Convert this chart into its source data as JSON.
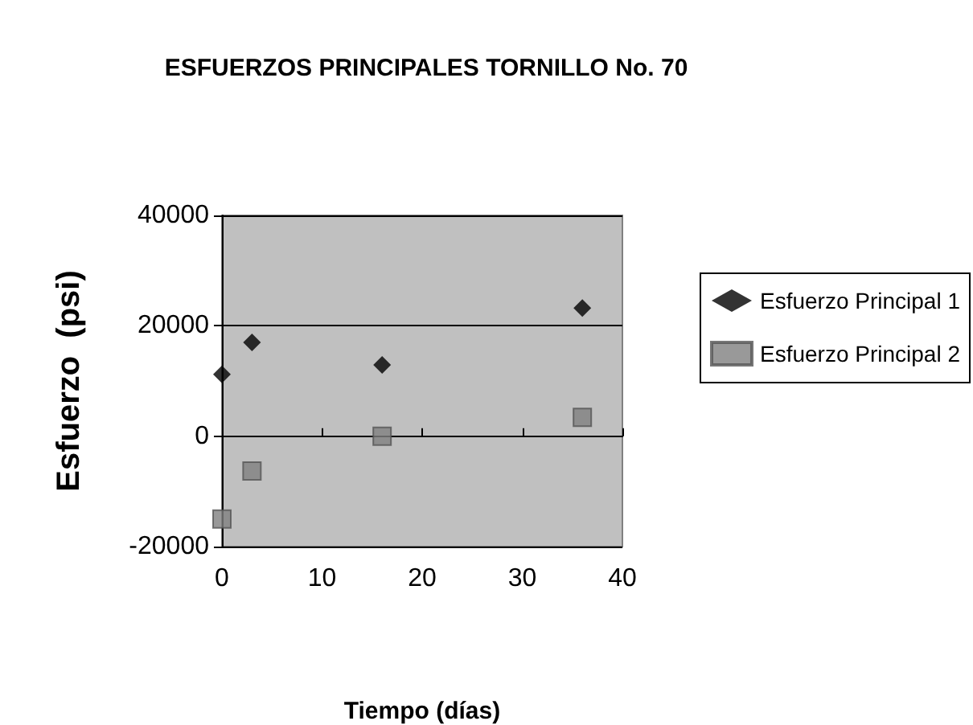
{
  "chart_data": {
    "type": "scatter",
    "title": "ESFUERZOS PRINCIPALES TORNILLO No. 70",
    "xlabel": "Tiempo (días)",
    "ylabel": "Esfuerzo  (psi)",
    "xlim": [
      0,
      40
    ],
    "xticks": [
      0,
      10,
      20,
      30,
      40
    ],
    "ylim": [
      -20000,
      40000
    ],
    "yticks": [
      -20000,
      0,
      20000,
      40000
    ],
    "grid": "y",
    "legend": "right",
    "series": [
      {
        "name": "Esfuerzo Principal 1",
        "color": "#000000",
        "marker": "diamond",
        "x": [
          0,
          3,
          16,
          36
        ],
        "values": [
          11200,
          17000,
          12900,
          23200
        ]
      },
      {
        "name": "Esfuerzo Principal 2",
        "color": "#808080",
        "marker": "square",
        "x": [
          0,
          3,
          16,
          36
        ],
        "values": [
          -15000,
          -6300,
          0,
          3400
        ]
      }
    ]
  }
}
